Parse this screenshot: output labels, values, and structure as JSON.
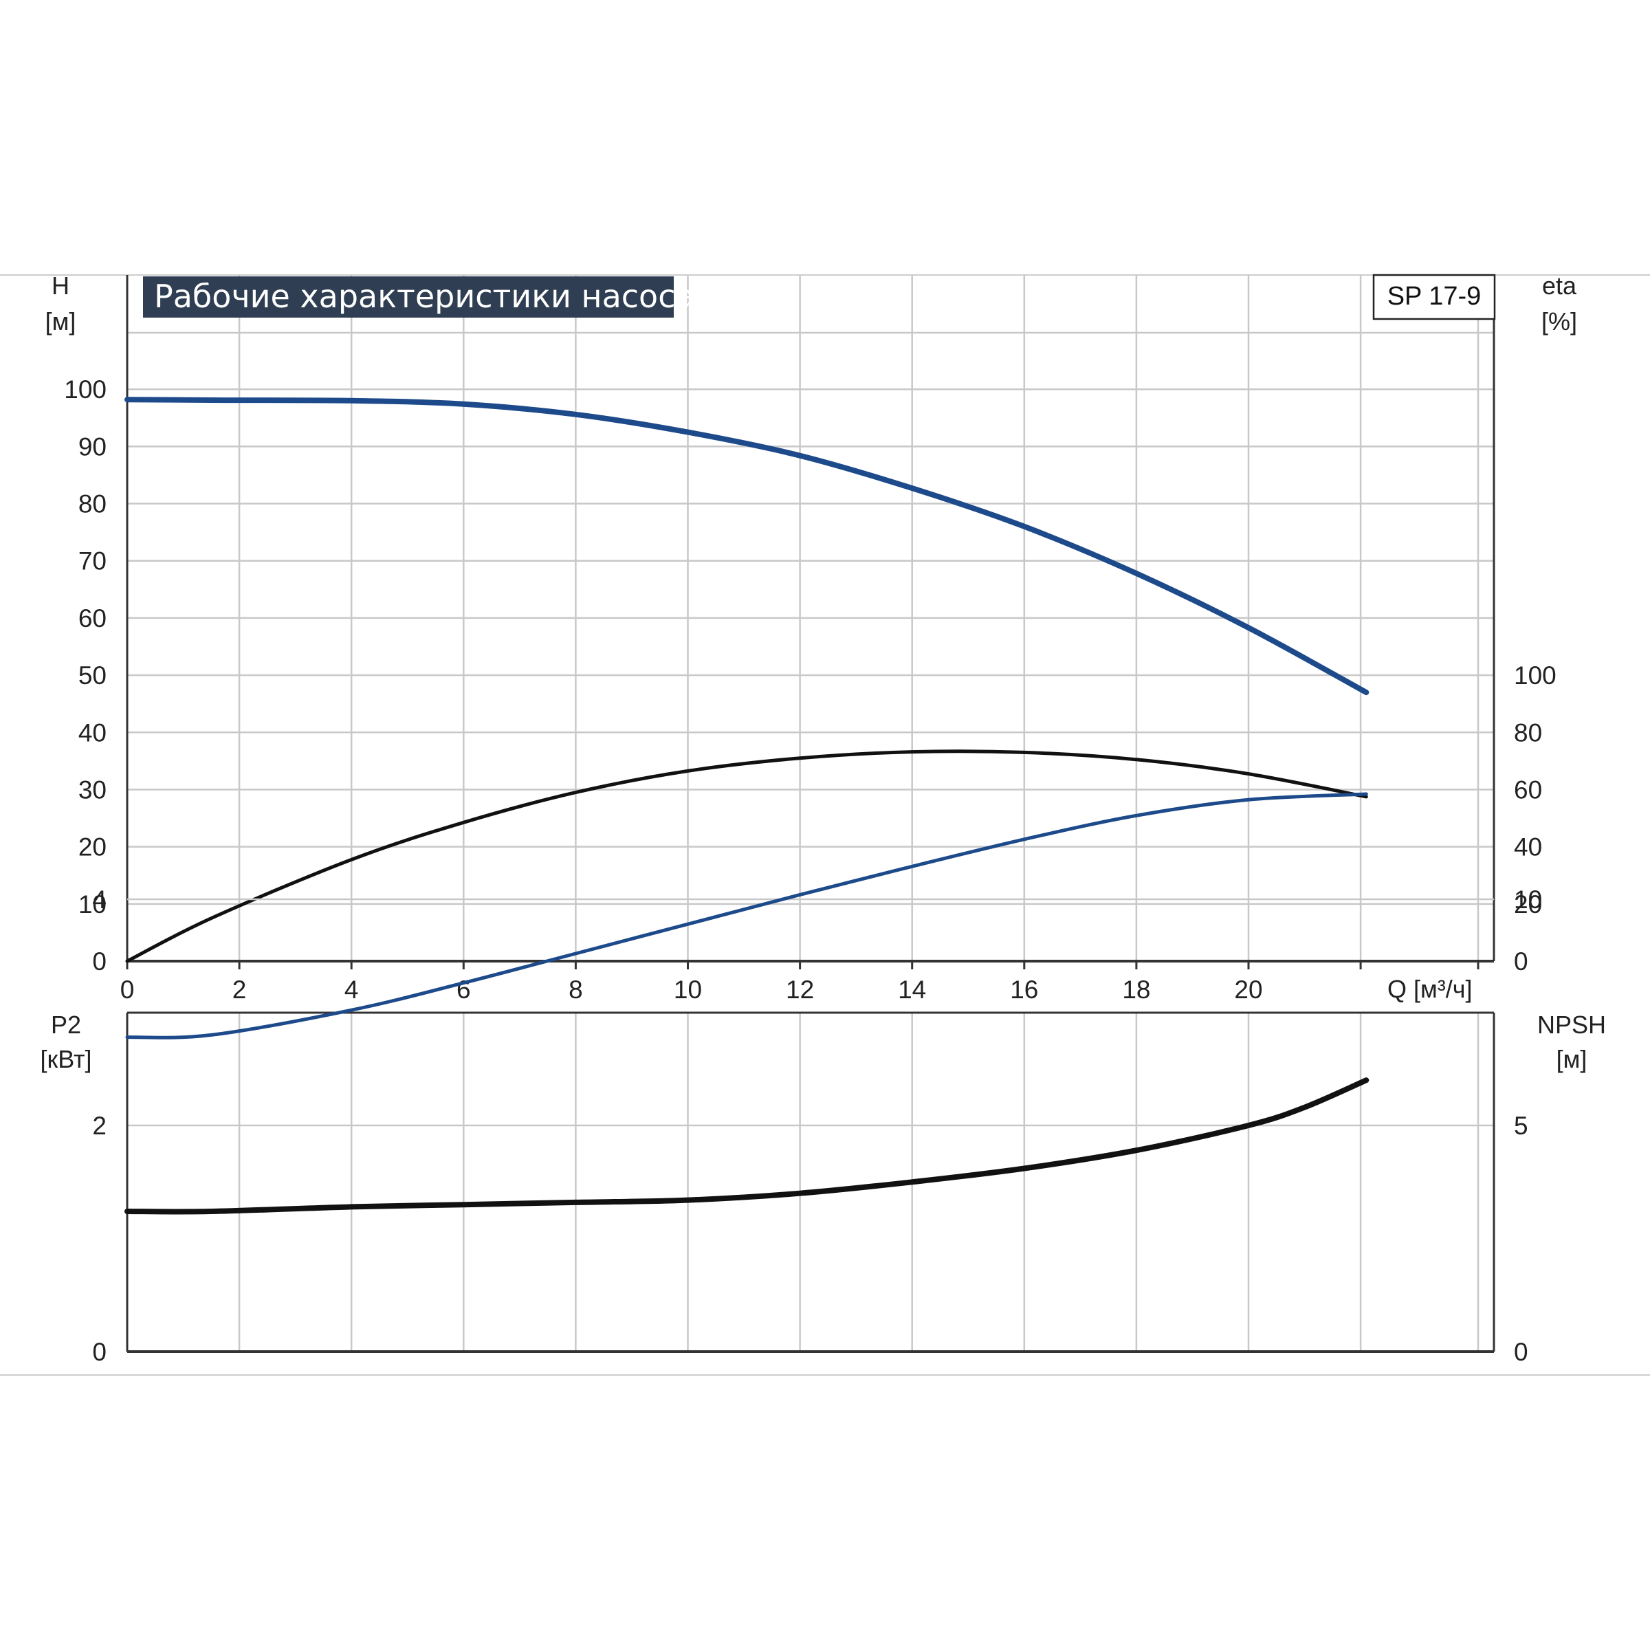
{
  "chart_data": [
    {
      "type": "line",
      "title": "Рабочие характеристики насоса",
      "model": "SP 17-9",
      "xlabel": "Q [м³/ч]",
      "xlim": [
        0,
        24
      ],
      "x_ticks": [
        0,
        2,
        4,
        6,
        8,
        10,
        12,
        14,
        16,
        18,
        20
      ],
      "left_axis": {
        "name": "H",
        "unit": "[м]",
        "range": [
          0,
          100
        ],
        "ticks": [
          0,
          10,
          20,
          30,
          40,
          50,
          60,
          70,
          80,
          90,
          100
        ]
      },
      "right_axis": {
        "name": "eta",
        "unit": "[%]",
        "range": [
          0,
          200
        ],
        "ticks": [
          0,
          20,
          40,
          60,
          80,
          100
        ]
      },
      "grid": true,
      "series": [
        {
          "axis": "left",
          "color": "#1d4a8a",
          "x": [
            0,
            1.5,
            4,
            6,
            8,
            10,
            12,
            14,
            16,
            18,
            20,
            22.1
          ],
          "values": [
            98.2,
            98.1,
            98.0,
            97.4,
            95.6,
            92.5,
            88.4,
            82.7,
            76.0,
            67.8,
            58.3,
            47.0
          ]
        },
        {
          "axis": "right",
          "color": "#111111",
          "x": [
            0,
            1.5,
            4,
            6,
            8,
            10,
            12,
            14,
            16,
            18,
            20,
            22.1
          ],
          "values": [
            0,
            15,
            35.5,
            48.5,
            59,
            66.5,
            71,
            73.2,
            73,
            70.5,
            65.5,
            57.5
          ]
        }
      ]
    },
    {
      "type": "line",
      "xlim": [
        0,
        24
      ],
      "left_axis": {
        "name": "P2",
        "unit": "[кВт]",
        "range": [
          0,
          6
        ],
        "ticks": [
          0,
          2,
          4
        ]
      },
      "right_axis": {
        "name": "NPSH",
        "unit": "[м]",
        "range": [
          0,
          15
        ],
        "ticks": [
          0,
          5,
          10
        ]
      },
      "grid": true,
      "series": [
        {
          "axis": "left",
          "color": "#1d4a8a",
          "x": [
            0,
            1.5,
            4,
            6,
            8,
            10,
            12,
            14,
            16,
            18,
            20,
            22.1
          ],
          "values": [
            2.78,
            2.8,
            3.02,
            3.26,
            3.52,
            3.78,
            4.04,
            4.29,
            4.53,
            4.74,
            4.88,
            4.93
          ]
        },
        {
          "axis": "right",
          "color": "#111111",
          "x": [
            0,
            1.5,
            4,
            6,
            8,
            10,
            12,
            14,
            16,
            18,
            20,
            21,
            22.1
          ],
          "values": [
            3.1,
            3.1,
            3.2,
            3.25,
            3.3,
            3.35,
            3.5,
            3.75,
            4.05,
            4.45,
            5.0,
            5.4,
            6.0
          ]
        }
      ]
    }
  ]
}
